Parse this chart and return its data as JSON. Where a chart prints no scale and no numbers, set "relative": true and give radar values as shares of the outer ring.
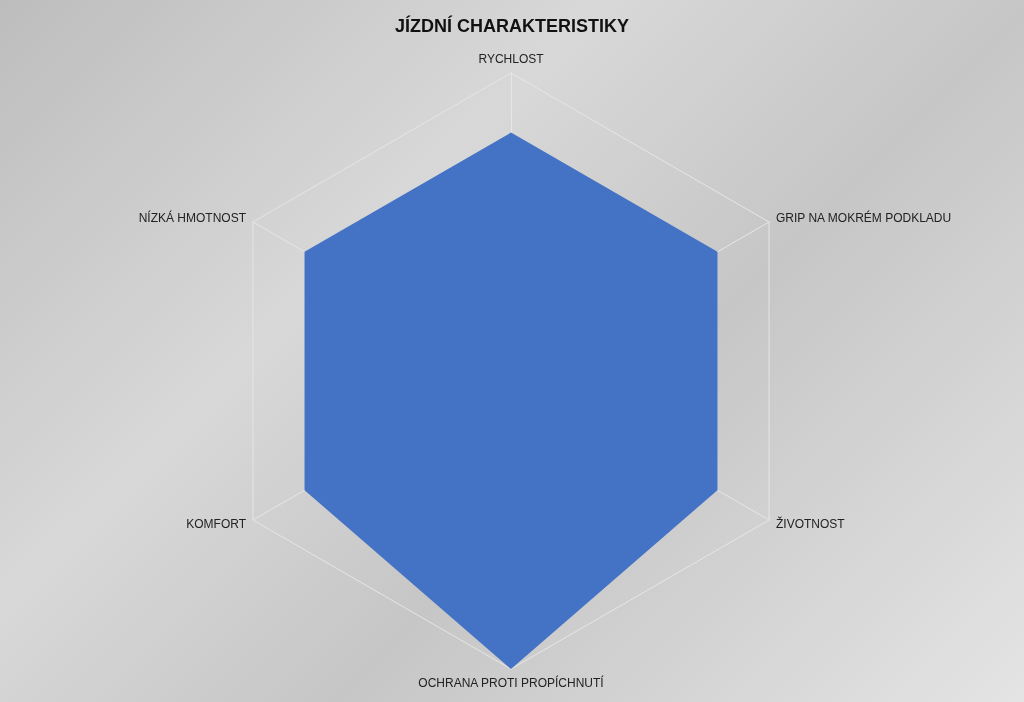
{
  "chart_data": {
    "type": "radar",
    "title": "JÍZDNÍ CHARAKTERISTIKY",
    "categories": [
      "RYCHLOST",
      "GRIP NA MOKRÉM PODKLADU",
      "ŽIVOTNOST",
      "OCHRANA PROTI PROPÍCHNUTÍ",
      "KOMFORT",
      "NÍZKÁ HMOTNOST"
    ],
    "relative": true,
    "series": [
      {
        "color": "#4472c4",
        "values": [
          0.8,
          0.8,
          0.8,
          1,
          0.8,
          0.8
        ]
      }
    ]
  }
}
